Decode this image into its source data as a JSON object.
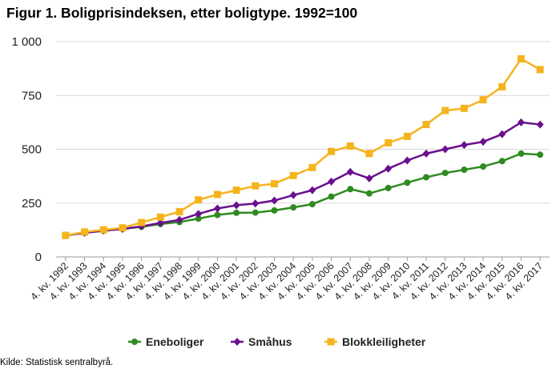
{
  "title": "Figur 1. Boligprisindeksen, etter boligtype. 1992=100",
  "source": "Kilde: Statistisk sentralbyrå.",
  "chart_data": {
    "type": "line",
    "title": "Figur 1. Boligprisindeksen, etter boligtype. 1992=100",
    "xlabel": "",
    "ylabel": "",
    "ylim": [
      0,
      1000
    ],
    "yticks": [
      0,
      250,
      500,
      750,
      1000
    ],
    "ytick_labels": [
      "0",
      "250",
      "500",
      "750",
      "1 000"
    ],
    "grid": true,
    "legend_position": "bottom",
    "x": [
      "4. kv. 1992",
      "4. kv. 1993",
      "4. kv. 1994",
      "4. kv. 1995",
      "4. kv. 1996",
      "4. kv. 1997",
      "4. kv. 1998",
      "4. kv. 1999",
      "4. kv. 2000",
      "4. kv. 2001",
      "4. kv. 2002",
      "4. kv. 2003",
      "4. kv. 2004",
      "4. kv. 2005",
      "4. kv. 2006",
      "4. kv. 2007",
      "4. kv. 2008",
      "4. kv. 2009",
      "4. kv. 2010",
      "4. kv. 2011",
      "4. kv. 2012",
      "4. kv. 2013",
      "4. kv. 2014",
      "4. kv. 2015",
      "4. kv. 2016",
      "4. kv. 2017"
    ],
    "series": [
      {
        "name": "Eneboliger",
        "color": "#2e8b20",
        "marker": "circle",
        "values": [
          100,
          112,
          122,
          130,
          140,
          153,
          162,
          178,
          195,
          205,
          206,
          216,
          230,
          245,
          280,
          315,
          295,
          320,
          345,
          370,
          390,
          405,
          420,
          445,
          480,
          475
        ]
      },
      {
        "name": "Småhus",
        "color": "#6a0f8e",
        "marker": "diamond",
        "values": [
          100,
          112,
          122,
          130,
          142,
          158,
          172,
          200,
          225,
          240,
          248,
          262,
          287,
          310,
          350,
          395,
          365,
          410,
          448,
          480,
          500,
          520,
          535,
          570,
          625,
          615
        ]
      },
      {
        "name": "Blokkleiligheter",
        "color": "#f5b41e",
        "marker": "square",
        "values": [
          100,
          116,
          126,
          135,
          160,
          185,
          210,
          265,
          290,
          310,
          330,
          340,
          378,
          415,
          490,
          515,
          480,
          530,
          560,
          615,
          680,
          690,
          730,
          790,
          920,
          870
        ]
      }
    ]
  }
}
